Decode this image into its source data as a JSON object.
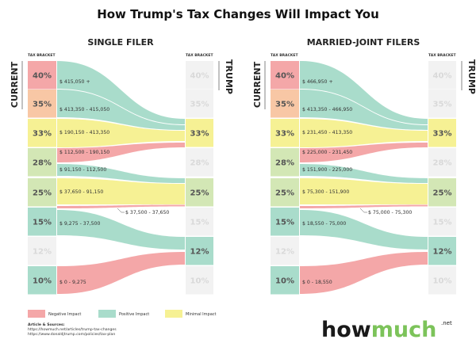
{
  "title": "How Trump's Tax Changes Will Impact You",
  "colors": {
    "negative": "#f4a7a8",
    "positive": "#a9dccb",
    "minimal": "#f6f194",
    "orange": "#f8c7a5",
    "green": "#d3e7b5",
    "inactive": "#f2f2f2",
    "inactive_text": "#d9d9d9",
    "text": "#555555",
    "logo_dark": "#1a1a1a",
    "logo_green": "#7cc35a"
  },
  "labels": {
    "tax_bracket": "TAX BRACKET",
    "current": "CURRENT",
    "trump": "TRUMP"
  },
  "panels": [
    {
      "title": "SINGLE FILER",
      "current_brackets": [
        {
          "rate": "40%",
          "color": "negative"
        },
        {
          "rate": "35%",
          "color": "orange"
        },
        {
          "rate": "33%",
          "color": "minimal"
        },
        {
          "rate": "28%",
          "color": "green"
        },
        {
          "rate": "25%",
          "color": "green"
        },
        {
          "rate": "15%",
          "color": "positive"
        },
        {
          "rate": "12%",
          "color": "inactive"
        },
        {
          "rate": "10%",
          "color": "positive"
        }
      ],
      "trump_brackets": [
        {
          "rate": "40%",
          "color": "inactive"
        },
        {
          "rate": "35%",
          "color": "inactive"
        },
        {
          "rate": "33%",
          "color": "minimal"
        },
        {
          "rate": "28%",
          "color": "inactive"
        },
        {
          "rate": "25%",
          "color": "green"
        },
        {
          "rate": "15%",
          "color": "inactive"
        },
        {
          "rate": "12%",
          "color": "positive"
        },
        {
          "rate": "10%",
          "color": "inactive"
        }
      ],
      "flows": [
        {
          "label": "$ 415,050 +",
          "impact": "positive",
          "from": "40%",
          "to": "33%"
        },
        {
          "label": "$ 413,350 - 415,050",
          "impact": "positive",
          "from": "35%",
          "to": "33%"
        },
        {
          "label": "$ 190,150 - 413,350",
          "impact": "minimal",
          "from": "33%",
          "to": "33%"
        },
        {
          "label": "$ 112,500 - 190,150",
          "impact": "negative",
          "from": "28%",
          "to": "33%"
        },
        {
          "label": "$ 91,150 - 112,500",
          "impact": "positive",
          "from": "28%",
          "to": "25%"
        },
        {
          "label": "$ 37,650 - 91,150",
          "impact": "minimal",
          "from": "25%",
          "to": "25%"
        },
        {
          "label": "$ 37,500 -  37,650",
          "impact": "negative",
          "from": "25%",
          "to": "25%"
        },
        {
          "label": "$ 9,275 - 37,500",
          "impact": "positive",
          "from": "15%",
          "to": "12%"
        },
        {
          "label": "$ 0 - 9,275",
          "impact": "negative",
          "from": "10%",
          "to": "12%"
        }
      ]
    },
    {
      "title": "MARRIED-JOINT FILERS",
      "current_brackets": [
        {
          "rate": "40%",
          "color": "negative"
        },
        {
          "rate": "35%",
          "color": "orange"
        },
        {
          "rate": "33%",
          "color": "minimal"
        },
        {
          "rate": "28%",
          "color": "green"
        },
        {
          "rate": "25%",
          "color": "green"
        },
        {
          "rate": "15%",
          "color": "positive"
        },
        {
          "rate": "12%",
          "color": "inactive"
        },
        {
          "rate": "10%",
          "color": "positive"
        }
      ],
      "trump_brackets": [
        {
          "rate": "40%",
          "color": "inactive"
        },
        {
          "rate": "35%",
          "color": "inactive"
        },
        {
          "rate": "33%",
          "color": "minimal"
        },
        {
          "rate": "28%",
          "color": "inactive"
        },
        {
          "rate": "25%",
          "color": "green"
        },
        {
          "rate": "15%",
          "color": "inactive"
        },
        {
          "rate": "12%",
          "color": "positive"
        },
        {
          "rate": "10%",
          "color": "inactive"
        }
      ],
      "flows": [
        {
          "label": "$ 466,950 +",
          "impact": "positive",
          "from": "40%",
          "to": "33%"
        },
        {
          "label": "$ 413,350 - 466,950",
          "impact": "positive",
          "from": "35%",
          "to": "33%"
        },
        {
          "label": "$ 231,450 - 413,350",
          "impact": "minimal",
          "from": "33%",
          "to": "33%"
        },
        {
          "label": "$ 225,000 - 231,450",
          "impact": "negative",
          "from": "28%",
          "to": "33%"
        },
        {
          "label": "$ 151,900 - 225,000",
          "impact": "positive",
          "from": "28%",
          "to": "25%"
        },
        {
          "label": "$ 75,300 - 151,900",
          "impact": "minimal",
          "from": "25%",
          "to": "25%"
        },
        {
          "label": "$ 75,000 -  75,300",
          "impact": "negative",
          "from": "25%",
          "to": "25%"
        },
        {
          "label": "$ 18,550 - 75,000",
          "impact": "positive",
          "from": "15%",
          "to": "12%"
        },
        {
          "label": "$ 0 - 18,550",
          "impact": "negative",
          "from": "10%",
          "to": "12%"
        }
      ]
    }
  ],
  "legend": [
    {
      "label": "Negative Impact",
      "color": "negative"
    },
    {
      "label": "Positive Impact",
      "color": "positive"
    },
    {
      "label": "Minimal Impact",
      "color": "minimal"
    }
  ],
  "sources": {
    "heading": "Article & Sources:",
    "links": [
      "https://howmuch.net/articles/trump-tax-changes",
      "https://www.donaldjtrump.com/policies/tax-plan"
    ]
  },
  "logo": {
    "part1": "how",
    "part2": "much",
    "suffix": ".net"
  }
}
